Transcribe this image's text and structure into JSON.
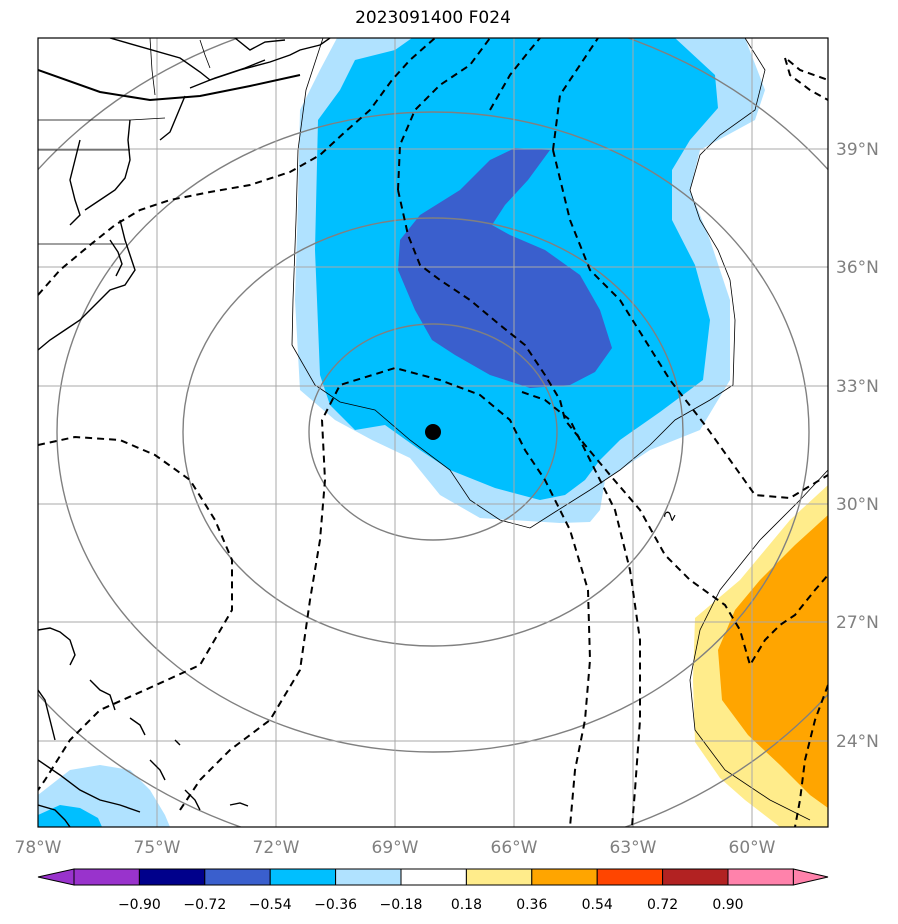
{
  "title": "2023091400 F024",
  "map": {
    "lon_labels": [
      "78°W",
      "75°W",
      "72°W",
      "69°W",
      "66°W",
      "63°W",
      "60°W"
    ],
    "lat_labels": [
      "39°N",
      "36°N",
      "33°N",
      "30°N",
      "27°N",
      "24°N"
    ],
    "storm_center": {
      "lon": "68°W",
      "lat": "31.8°N"
    },
    "contour_label": "2"
  },
  "colorbar": {
    "labels": [
      "−0.90",
      "−0.72",
      "−0.54",
      "−0.36",
      "−0.18",
      "0.18",
      "0.36",
      "0.54",
      "0.72",
      "0.90"
    ],
    "colors": [
      "#9933cc",
      "#00008b",
      "#3a5fcd",
      "#00bfff",
      "#b0e2ff",
      "#ffffff",
      "#ffec8b",
      "#ffa500",
      "#ff4500",
      "#b22222",
      "#ff82ab"
    ]
  },
  "colors": {
    "level_light_blue": "#b0e2ff",
    "level_deep_sky": "#00bfff",
    "level_royal_blue": "#3a5fcd",
    "level_light_yellow": "#ffec8b",
    "level_orange": "#ffa500",
    "grid": "#808080",
    "contour_dashed": "#000000"
  }
}
